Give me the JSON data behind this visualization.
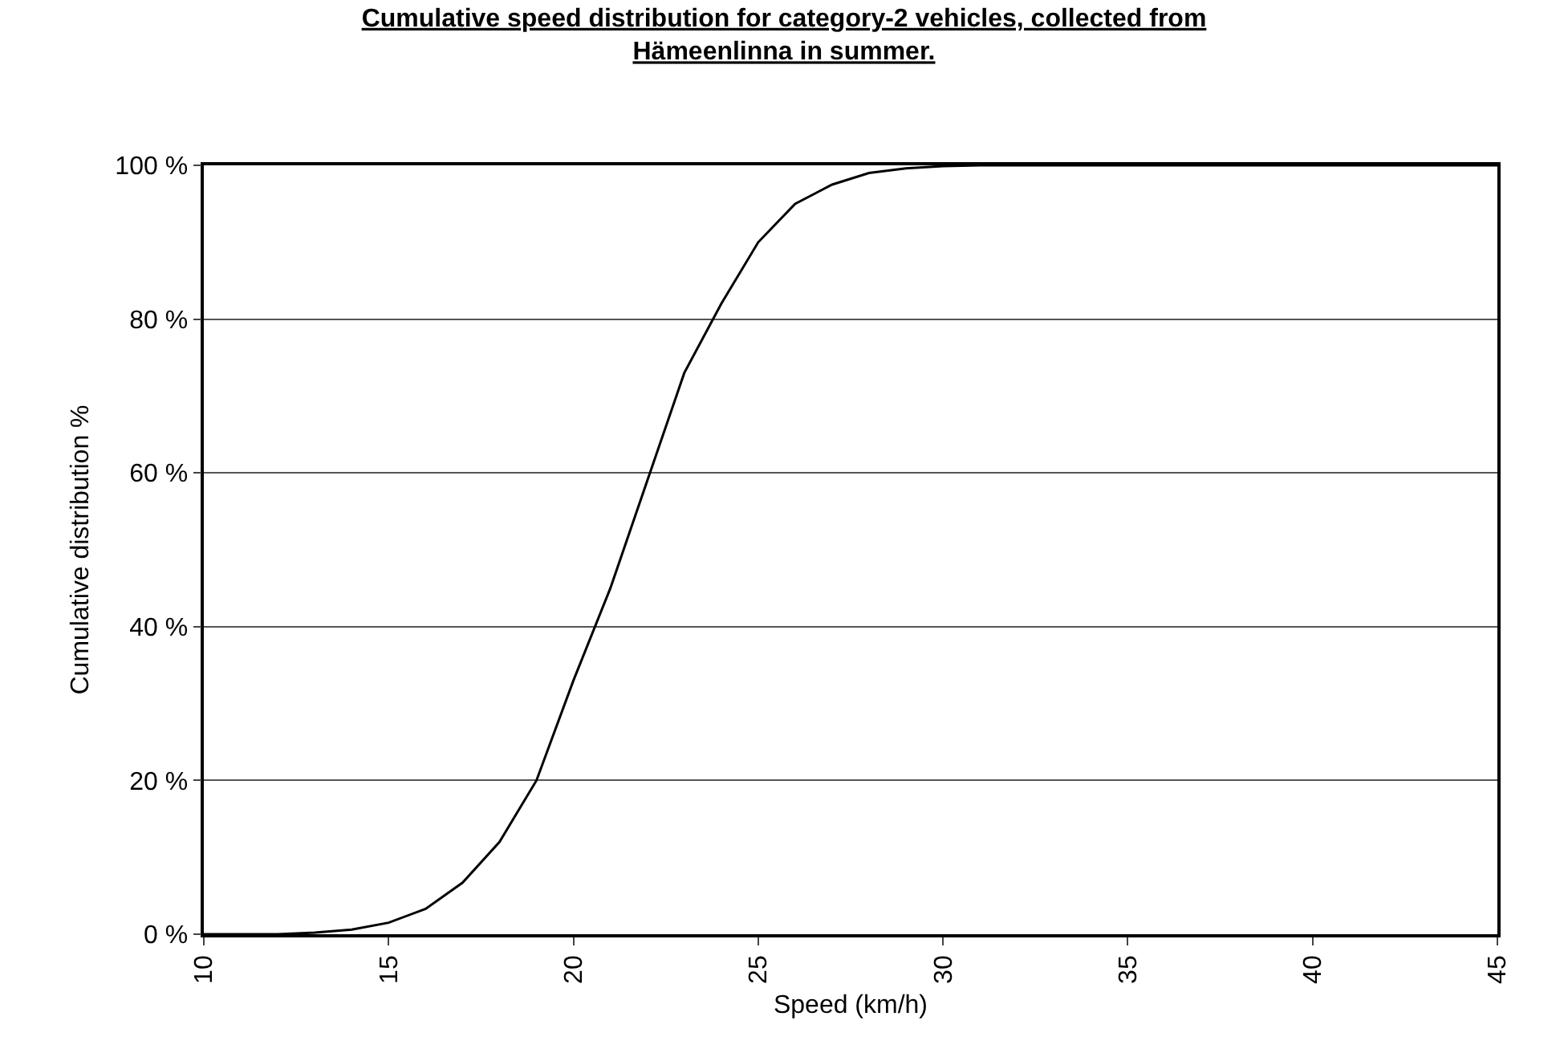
{
  "chart_data": {
    "type": "line",
    "title": "Cumulative speed distribution for category-2 vehicles, collected from\nHämeenlinna in summer.",
    "xlabel": "Speed (km/h)",
    "ylabel": "Cumulative distribution %",
    "x": [
      10,
      11,
      12,
      13,
      14,
      15,
      16,
      17,
      18,
      19,
      20,
      21,
      22,
      23,
      24,
      25,
      26,
      27,
      28,
      29,
      30,
      31,
      32,
      33,
      34,
      35,
      36,
      37,
      38,
      39,
      40,
      41,
      42,
      43,
      44,
      45
    ],
    "series": [
      {
        "color": "#000000",
        "values": [
          0,
          0,
          0,
          0.2,
          0.6,
          1.5,
          3.3,
          6.7,
          12,
          20,
          33,
          45,
          59,
          73,
          82,
          90,
          95,
          97.5,
          99,
          99.6,
          99.9,
          100,
          100,
          100,
          100,
          100,
          100,
          100,
          100,
          100,
          100,
          100,
          100,
          100,
          100,
          100
        ]
      }
    ],
    "xlim": [
      10,
      45
    ],
    "xticks": [
      10,
      15,
      20,
      25,
      30,
      35,
      40,
      45
    ],
    "ylim": [
      0,
      100
    ],
    "yticks": [
      {
        "value": 0,
        "label": "0 %"
      },
      {
        "value": 20,
        "label": "20 %"
      },
      {
        "value": 40,
        "label": "40 %"
      },
      {
        "value": 60,
        "label": "60 %"
      },
      {
        "value": 80,
        "label": "80 %"
      },
      {
        "value": 100,
        "label": "100 %"
      }
    ],
    "grid": "y",
    "marker": "none",
    "line_style": "solid"
  }
}
